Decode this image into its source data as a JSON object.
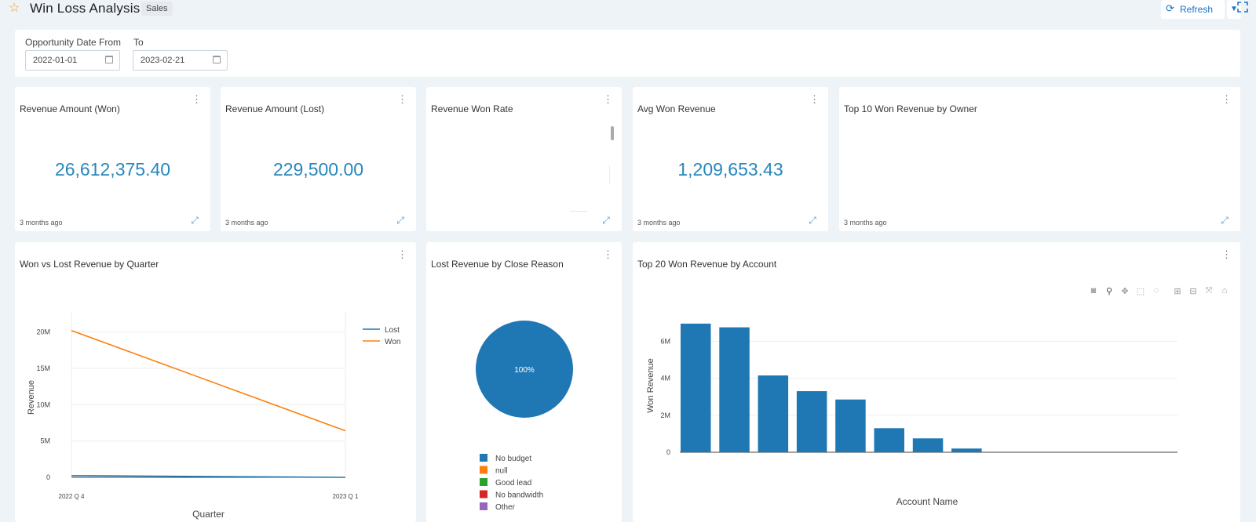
{
  "header": {
    "title": "Win Loss Analysis",
    "tag": "Sales",
    "refresh_label": "Refresh",
    "favorite_icon": "star-icon",
    "refresh_icon": "refresh-icon",
    "fullscreen_icon": "fullscreen-icon"
  },
  "filters": {
    "from_label": "Opportunity Date From",
    "from_value": "2022-01-01",
    "to_label": "To",
    "to_value": "2023-02-21"
  },
  "kpis": [
    {
      "title": "Revenue Amount (Won)",
      "value": "26,612,375.40",
      "updated": "3 months ago"
    },
    {
      "title": "Revenue Amount (Lost)",
      "value": "229,500.00",
      "updated": "3 months ago"
    },
    {
      "title": "Revenue Won Rate",
      "value": "",
      "updated": ""
    },
    {
      "title": "Avg Won Revenue",
      "value": "1,209,653.43",
      "updated": "3 months ago"
    },
    {
      "title": "Top 10 Won Revenue by Owner",
      "value": "",
      "updated": "3 months ago"
    }
  ],
  "charts": {
    "line_title": "Won vs Lost Revenue by Quarter",
    "pie_title": "Lost Revenue by Close Reason",
    "bar_title": "Top 20 Won Revenue by Account"
  },
  "colors": {
    "accent": "#2687bd",
    "series_blue": "#1f77b4",
    "series_orange": "#ff7f0e",
    "series_green": "#2ca02c",
    "series_red": "#d62728",
    "series_purple": "#9467bd"
  },
  "chart_data": [
    {
      "type": "line",
      "title": "Won vs Lost Revenue by Quarter",
      "xlabel": "Quarter",
      "ylabel": "Revenue",
      "categories": [
        "2022 Q 4",
        "2023 Q 1"
      ],
      "yticks": [
        "0",
        "5M",
        "10M",
        "15M",
        "20M"
      ],
      "ylim": [
        0,
        22000000
      ],
      "grid": true,
      "legend": "top-right",
      "series": [
        {
          "name": "Lost",
          "values": [
            230000,
            0
          ],
          "color": "#1f77b4"
        },
        {
          "name": "Won",
          "values": [
            20200000,
            6400000
          ],
          "color": "#ff7f0e"
        }
      ]
    },
    {
      "type": "pie",
      "title": "Lost Revenue by Close Reason",
      "slices": [
        {
          "label": "No budget",
          "value": 100,
          "color": "#1f77b4"
        },
        {
          "label": "null",
          "value": 0,
          "color": "#ff7f0e"
        },
        {
          "label": "Good lead",
          "value": 0,
          "color": "#2ca02c"
        },
        {
          "label": "No bandwidth",
          "value": 0,
          "color": "#d62728"
        },
        {
          "label": "Other",
          "value": 0,
          "color": "#9467bd"
        }
      ],
      "center_label": "100%",
      "legend": "bottom"
    },
    {
      "type": "bar",
      "title": "Top 20 Won Revenue by Account",
      "xlabel": "Account Name",
      "ylabel": "Won Revenue",
      "yticks": [
        "0",
        "2M",
        "4M",
        "6M"
      ],
      "ylim": [
        0,
        7200000
      ],
      "grid": true,
      "values": [
        6950000,
        6750000,
        4150000,
        3300000,
        2850000,
        1300000,
        750000,
        200000
      ],
      "color": "#1f77b4"
    }
  ]
}
